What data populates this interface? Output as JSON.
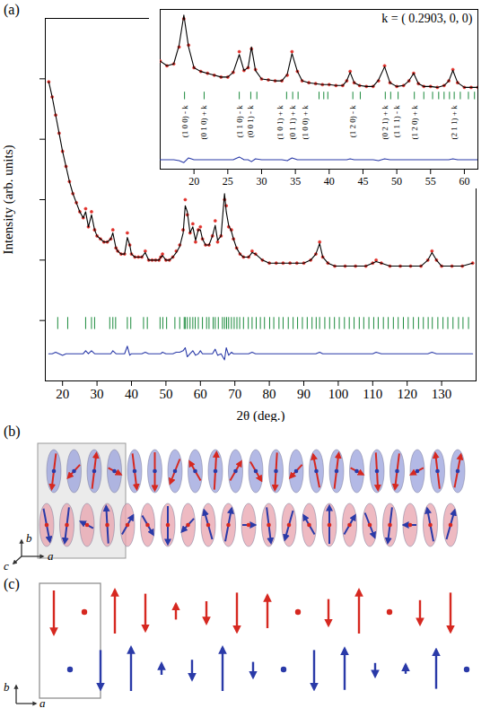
{
  "chart_data": [
    {
      "type": "line",
      "panel": "(a)",
      "xlabel": "2θ (deg.)",
      "ylabel": "Intensity (arb. units)",
      "xlim": [
        15,
        140
      ],
      "xticks": [
        20,
        30,
        40,
        50,
        60,
        70,
        80,
        90,
        100,
        110,
        120,
        130
      ],
      "ylim": [
        0,
        120
      ],
      "yticks": [
        20,
        40,
        60,
        80,
        100
      ],
      "tick_labels": "x",
      "grid": false,
      "x": [
        16,
        17,
        18,
        19,
        20,
        21,
        22,
        23,
        24,
        25,
        26,
        26.7,
        27.5,
        28.4,
        29.3,
        30,
        31,
        32,
        33,
        34,
        34.6,
        35.5,
        36,
        37,
        38,
        38.8,
        39.5,
        40,
        41,
        42,
        43,
        44,
        45,
        46,
        47,
        48,
        48.5,
        49,
        50,
        51,
        52,
        53,
        54,
        55,
        55.6,
        56.2,
        57,
        57.8,
        58.6,
        59.4,
        60,
        60.6,
        61.5,
        62.5,
        63.5,
        64.3,
        65,
        66,
        67,
        67.5,
        68.2,
        69,
        69.6,
        70.5,
        71.5,
        72.5,
        74,
        75,
        76,
        78,
        80,
        82,
        84,
        86,
        88,
        90,
        92,
        93.5,
        94.6,
        95.5,
        97,
        99,
        102,
        105,
        108,
        110,
        111,
        112.5,
        115,
        118,
        121,
        124,
        126,
        127.2,
        128.5,
        130,
        133,
        136,
        139
      ],
      "series": [
        {
          "type": "scatter",
          "color": "#e0302a",
          "marker": "circle",
          "values": [
            99,
            94,
            88,
            82,
            76,
            71,
            66,
            62,
            59,
            56,
            54,
            57,
            51,
            56,
            50,
            48,
            47,
            46,
            46,
            47,
            50,
            44,
            43,
            42,
            42,
            49,
            45,
            42,
            41,
            41,
            41,
            43,
            40,
            40,
            40,
            40,
            41,
            42,
            40,
            40,
            41,
            43,
            45,
            50,
            60,
            55,
            49,
            52,
            46,
            50,
            51,
            47,
            45,
            45,
            48,
            53,
            46,
            48,
            60,
            58,
            51,
            50,
            47,
            44,
            42,
            41,
            41,
            43,
            42,
            40,
            39,
            39,
            39,
            39,
            39,
            39,
            40,
            42,
            46,
            41,
            39,
            38,
            38,
            38,
            38,
            39,
            40,
            39,
            38,
            38,
            38,
            38,
            40,
            43,
            40,
            38,
            38,
            38,
            39
          ]
        },
        {
          "type": "line",
          "color": "#000000",
          "line_style": "solid",
          "values": [
            99,
            94,
            88,
            82,
            76,
            71,
            66,
            62,
            59,
            56,
            54,
            56,
            51,
            55,
            50,
            48,
            47,
            46,
            46,
            47,
            49,
            44,
            43,
            42,
            42,
            47.5,
            45,
            42,
            41,
            41,
            41,
            42.5,
            40,
            40,
            40,
            40,
            41,
            41.5,
            40,
            40,
            41,
            42.5,
            44.5,
            49,
            58,
            56,
            49,
            51,
            46.5,
            50,
            50,
            47,
            45,
            45,
            48,
            51.5,
            46.5,
            48,
            62,
            56,
            51.5,
            49.5,
            47,
            44,
            42,
            41,
            41,
            42.5,
            42,
            40,
            39,
            39,
            39,
            39,
            39,
            39,
            40,
            42,
            45.5,
            41,
            39,
            38,
            38,
            38,
            38,
            39,
            39.5,
            39,
            38,
            38,
            38,
            38,
            40,
            42.5,
            40,
            38,
            38,
            38,
            39
          ]
        },
        {
          "type": "line",
          "color": "#2a3aa8",
          "line_style": "solid",
          "values": [
            9,
            9,
            9.5,
            9,
            8.5,
            9,
            9,
            9,
            9,
            9,
            9,
            10,
            9,
            10,
            9,
            9,
            9,
            9,
            9,
            9,
            10,
            9,
            9,
            9,
            9,
            11.5,
            8.5,
            9,
            9,
            9,
            9,
            9.5,
            9,
            9,
            9,
            9,
            9,
            9.5,
            9,
            9,
            9,
            9.5,
            9.5,
            10,
            11,
            8,
            9,
            10,
            8.5,
            9,
            10,
            9,
            9,
            9,
            9,
            10.5,
            8.5,
            9,
            7,
            11,
            8.5,
            9.5,
            9,
            9,
            9,
            9,
            9,
            9.5,
            9,
            9,
            9,
            9,
            9,
            9,
            9,
            9,
            9,
            9,
            9.5,
            9,
            9,
            9,
            9,
            9,
            9,
            9,
            9.5,
            9,
            9,
            9,
            9,
            9,
            9,
            9.5,
            9,
            9,
            9,
            9,
            9
          ]
        }
      ],
      "reflections": {
        "color": "#1b8a3c",
        "x": [
          18.6,
          21.5,
          26.7,
          28.4,
          29.3,
          33.7,
          34.6,
          35.4,
          38.8,
          39.8,
          43.5,
          44.6,
          48.3,
          49.1,
          50.2,
          52.6,
          54.0,
          55.3,
          55.6,
          56.2,
          57.0,
          57.8,
          58.5,
          59.4,
          60.6,
          61.8,
          62.5,
          63.7,
          64.3,
          65.2,
          66.4,
          67.0,
          67.6,
          68.2,
          69.0,
          69.8,
          70.6,
          71.4,
          72.5,
          73.9,
          75.0,
          76.2,
          77.4,
          78.6,
          80.1,
          81.3,
          82.8,
          84.0,
          85.5,
          86.9,
          88.2,
          89.6,
          91.0,
          92.4,
          93.6,
          94.6,
          96.1,
          97.5,
          98.9,
          100.3,
          101.8,
          103.2,
          104.6,
          106.1,
          107.4,
          108.9,
          110.3,
          111.6,
          113.1,
          114.5,
          116.0,
          117.4,
          118.9,
          120.3,
          121.8,
          123.3,
          124.7,
          126.1,
          127.3,
          128.9,
          130.4,
          131.8,
          133.3,
          134.9,
          136.2,
          137.8
        ]
      }
    },
    {
      "type": "line",
      "title": "k = ( 0.2903, 0, 0)",
      "xlim": [
        15,
        62
      ],
      "xticks": [
        20,
        25,
        30,
        35,
        40,
        45,
        50,
        55,
        60
      ],
      "ylim": [
        -70,
        100
      ],
      "tick_labels": "x",
      "grid": false,
      "x": [
        15,
        16,
        17,
        17.8,
        18.5,
        19.2,
        20,
        21,
        22,
        23,
        24,
        25,
        25.8,
        26.7,
        27.4,
        28,
        28.5,
        29.1,
        30,
        31,
        32,
        33,
        33.8,
        34.5,
        35.3,
        36,
        37,
        38,
        39,
        40,
        41,
        42,
        42.6,
        43.1,
        43.7,
        44.5,
        45.5,
        46.5,
        47.3,
        48.2,
        49,
        50,
        51,
        51.8,
        52.5,
        53.2,
        54,
        55,
        56,
        57,
        57.7,
        58.3,
        59,
        60,
        61,
        62
      ],
      "series": [
        {
          "type": "scatter",
          "color": "#e0302a",
          "marker": "circle",
          "values": [
            45,
            40,
            42,
            60,
            90,
            62,
            38,
            34,
            32,
            30,
            28,
            28,
            33,
            55,
            35,
            38,
            58,
            36,
            26,
            25,
            24,
            24,
            30,
            55,
            34,
            24,
            22,
            21,
            20,
            20,
            19,
            19,
            24,
            34,
            22,
            19,
            18,
            18,
            24,
            40,
            22,
            18,
            19,
            24,
            32,
            21,
            18,
            18,
            17,
            19,
            24,
            36,
            22,
            17,
            17,
            17
          ]
        },
        {
          "type": "line",
          "color": "#000000",
          "line_style": "solid",
          "values": [
            45,
            40,
            42,
            62,
            94,
            60,
            38,
            34,
            32,
            30,
            28,
            28,
            33,
            52,
            35,
            38,
            60,
            35,
            26,
            25,
            24,
            24,
            31,
            53,
            34,
            24,
            22,
            21,
            20,
            20,
            19,
            19,
            24,
            33,
            22,
            19,
            18,
            18,
            25,
            39,
            22,
            18,
            19,
            24,
            32,
            21,
            18,
            18,
            17,
            19,
            24,
            35,
            22,
            17,
            17,
            17
          ]
        },
        {
          "type": "line",
          "color": "#2a3aa8",
          "line_style": "solid",
          "values": [
            -60,
            -60,
            -60,
            -61,
            -63,
            -58,
            -60,
            -60,
            -60,
            -60,
            -60,
            -60,
            -60,
            -57,
            -60,
            -60,
            -62,
            -59,
            -60,
            -60,
            -60,
            -60,
            -61,
            -58,
            -60,
            -60,
            -60,
            -60,
            -60,
            -60,
            -60,
            -60,
            -60,
            -59,
            -60,
            -60,
            -60,
            -60,
            -61,
            -59,
            -60,
            -60,
            -60,
            -60,
            -60,
            -60,
            -60,
            -60,
            -60,
            -60,
            -60,
            -59,
            -60,
            -60,
            -60,
            -60
          ]
        }
      ],
      "reflections": {
        "color": "#1b8a3c",
        "x": [
          18.6,
          21.5,
          26.7,
          28.4,
          29.3,
          33.7,
          34.6,
          35.4,
          38.5,
          39.2,
          39.8,
          43.5,
          44.6,
          48.3,
          49.1,
          50.2,
          52.6,
          54.0,
          55.3,
          56.2,
          57.0,
          57.8,
          58.5,
          59.4,
          60.6,
          61.5
        ]
      },
      "annotations": [
        {
          "text": "(1 0 0) - k",
          "x": 18.6
        },
        {
          "text": "(0 1 0) + k",
          "x": 21.5
        },
        {
          "text": "(1 1 0) - k",
          "x": 26.7
        },
        {
          "text": "(0 0 1) - k",
          "x": 28.4
        },
        {
          "text": "(1 0 1) + k",
          "x": 32.8
        },
        {
          "text": "(0 1 1) + k",
          "x": 34.6
        },
        {
          "text": "(1 0 0) + k",
          "x": 36.4
        },
        {
          "text": "(1 2 0) - k",
          "x": 43.5
        },
        {
          "text": "(0 2 1) + k",
          "x": 48.3
        },
        {
          "text": "(1 1 1) - k",
          "x": 50.0
        },
        {
          "text": "(1 2 0) + k",
          "x": 52.6
        },
        {
          "text": "(2 1 1) + k",
          "x": 58.5
        }
      ]
    }
  ],
  "diagrams": [
    {
      "panel": "(b)",
      "axes": [
        "a",
        "b",
        "c"
      ],
      "rows": [
        {
          "color": "#d62820",
          "ellipse_color": "#9aa2dc",
          "spin_angles": [
            200,
            250,
            20,
            100,
            160,
            180,
            230,
            300,
            10,
            60,
            120,
            190,
            250,
            330,
            20,
            100,
            170,
            200,
            260,
            340,
            30
          ]
        },
        {
          "color": "#2a3aa8",
          "ellipse_color": "#e8a3ad",
          "spin_angles": [
            150,
            200,
            280,
            350,
            60,
            120,
            180,
            250,
            320,
            30,
            90,
            160,
            220,
            300,
            0,
            60,
            130,
            200,
            270,
            330,
            40
          ]
        }
      ]
    },
    {
      "panel": "(c)",
      "axes": [
        "a",
        "b"
      ],
      "rows": [
        {
          "color": "#d62820",
          "moments": [
            -1,
            0.05,
            1,
            -0.85,
            0.35,
            -0.5,
            -0.9,
            0.75,
            0.08,
            -0.6,
            1,
            0.12,
            -0.55,
            -0.9
          ]
        },
        {
          "color": "#2a3aa8",
          "moments": [
            0.06,
            -0.9,
            1,
            0.25,
            -0.45,
            1,
            -0.35,
            0.1,
            -0.9,
            0.95,
            -0.3,
            0.2,
            0.9,
            0.1
          ]
        }
      ]
    }
  ]
}
